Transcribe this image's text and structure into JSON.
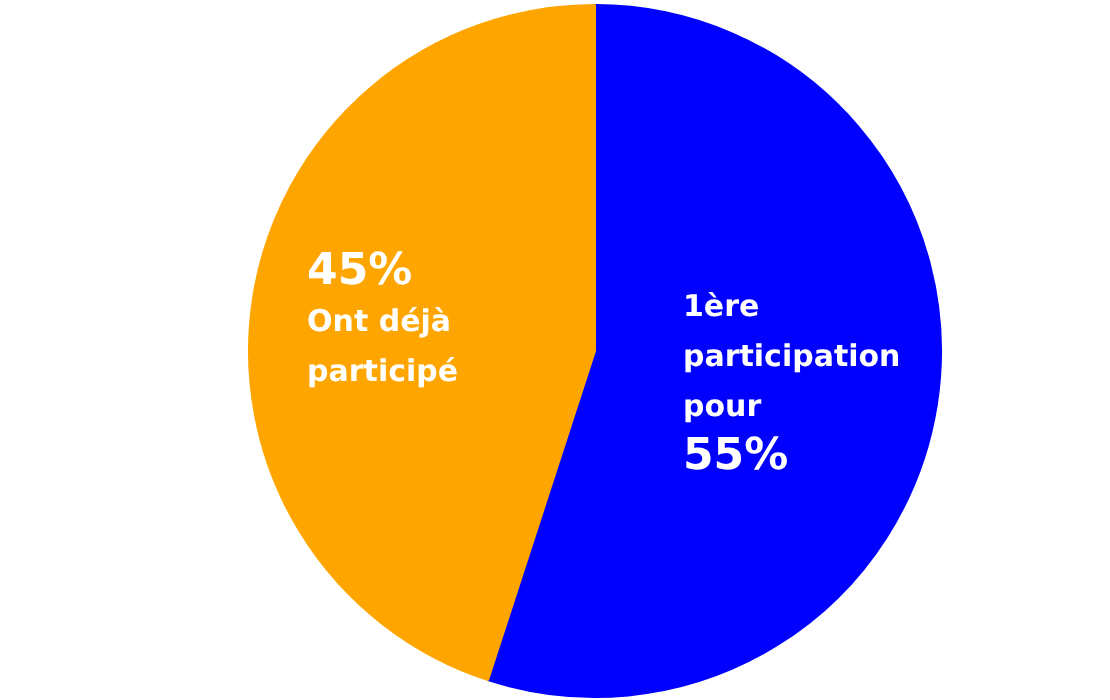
{
  "chart_data": {
    "type": "pie",
    "categories": [
      "1ère participation pour",
      "Ont déjà participé"
    ],
    "values": [
      55,
      45
    ],
    "colors": [
      "#0000ff",
      "#ffa500"
    ],
    "value_labels": [
      "55%",
      "45%"
    ]
  }
}
